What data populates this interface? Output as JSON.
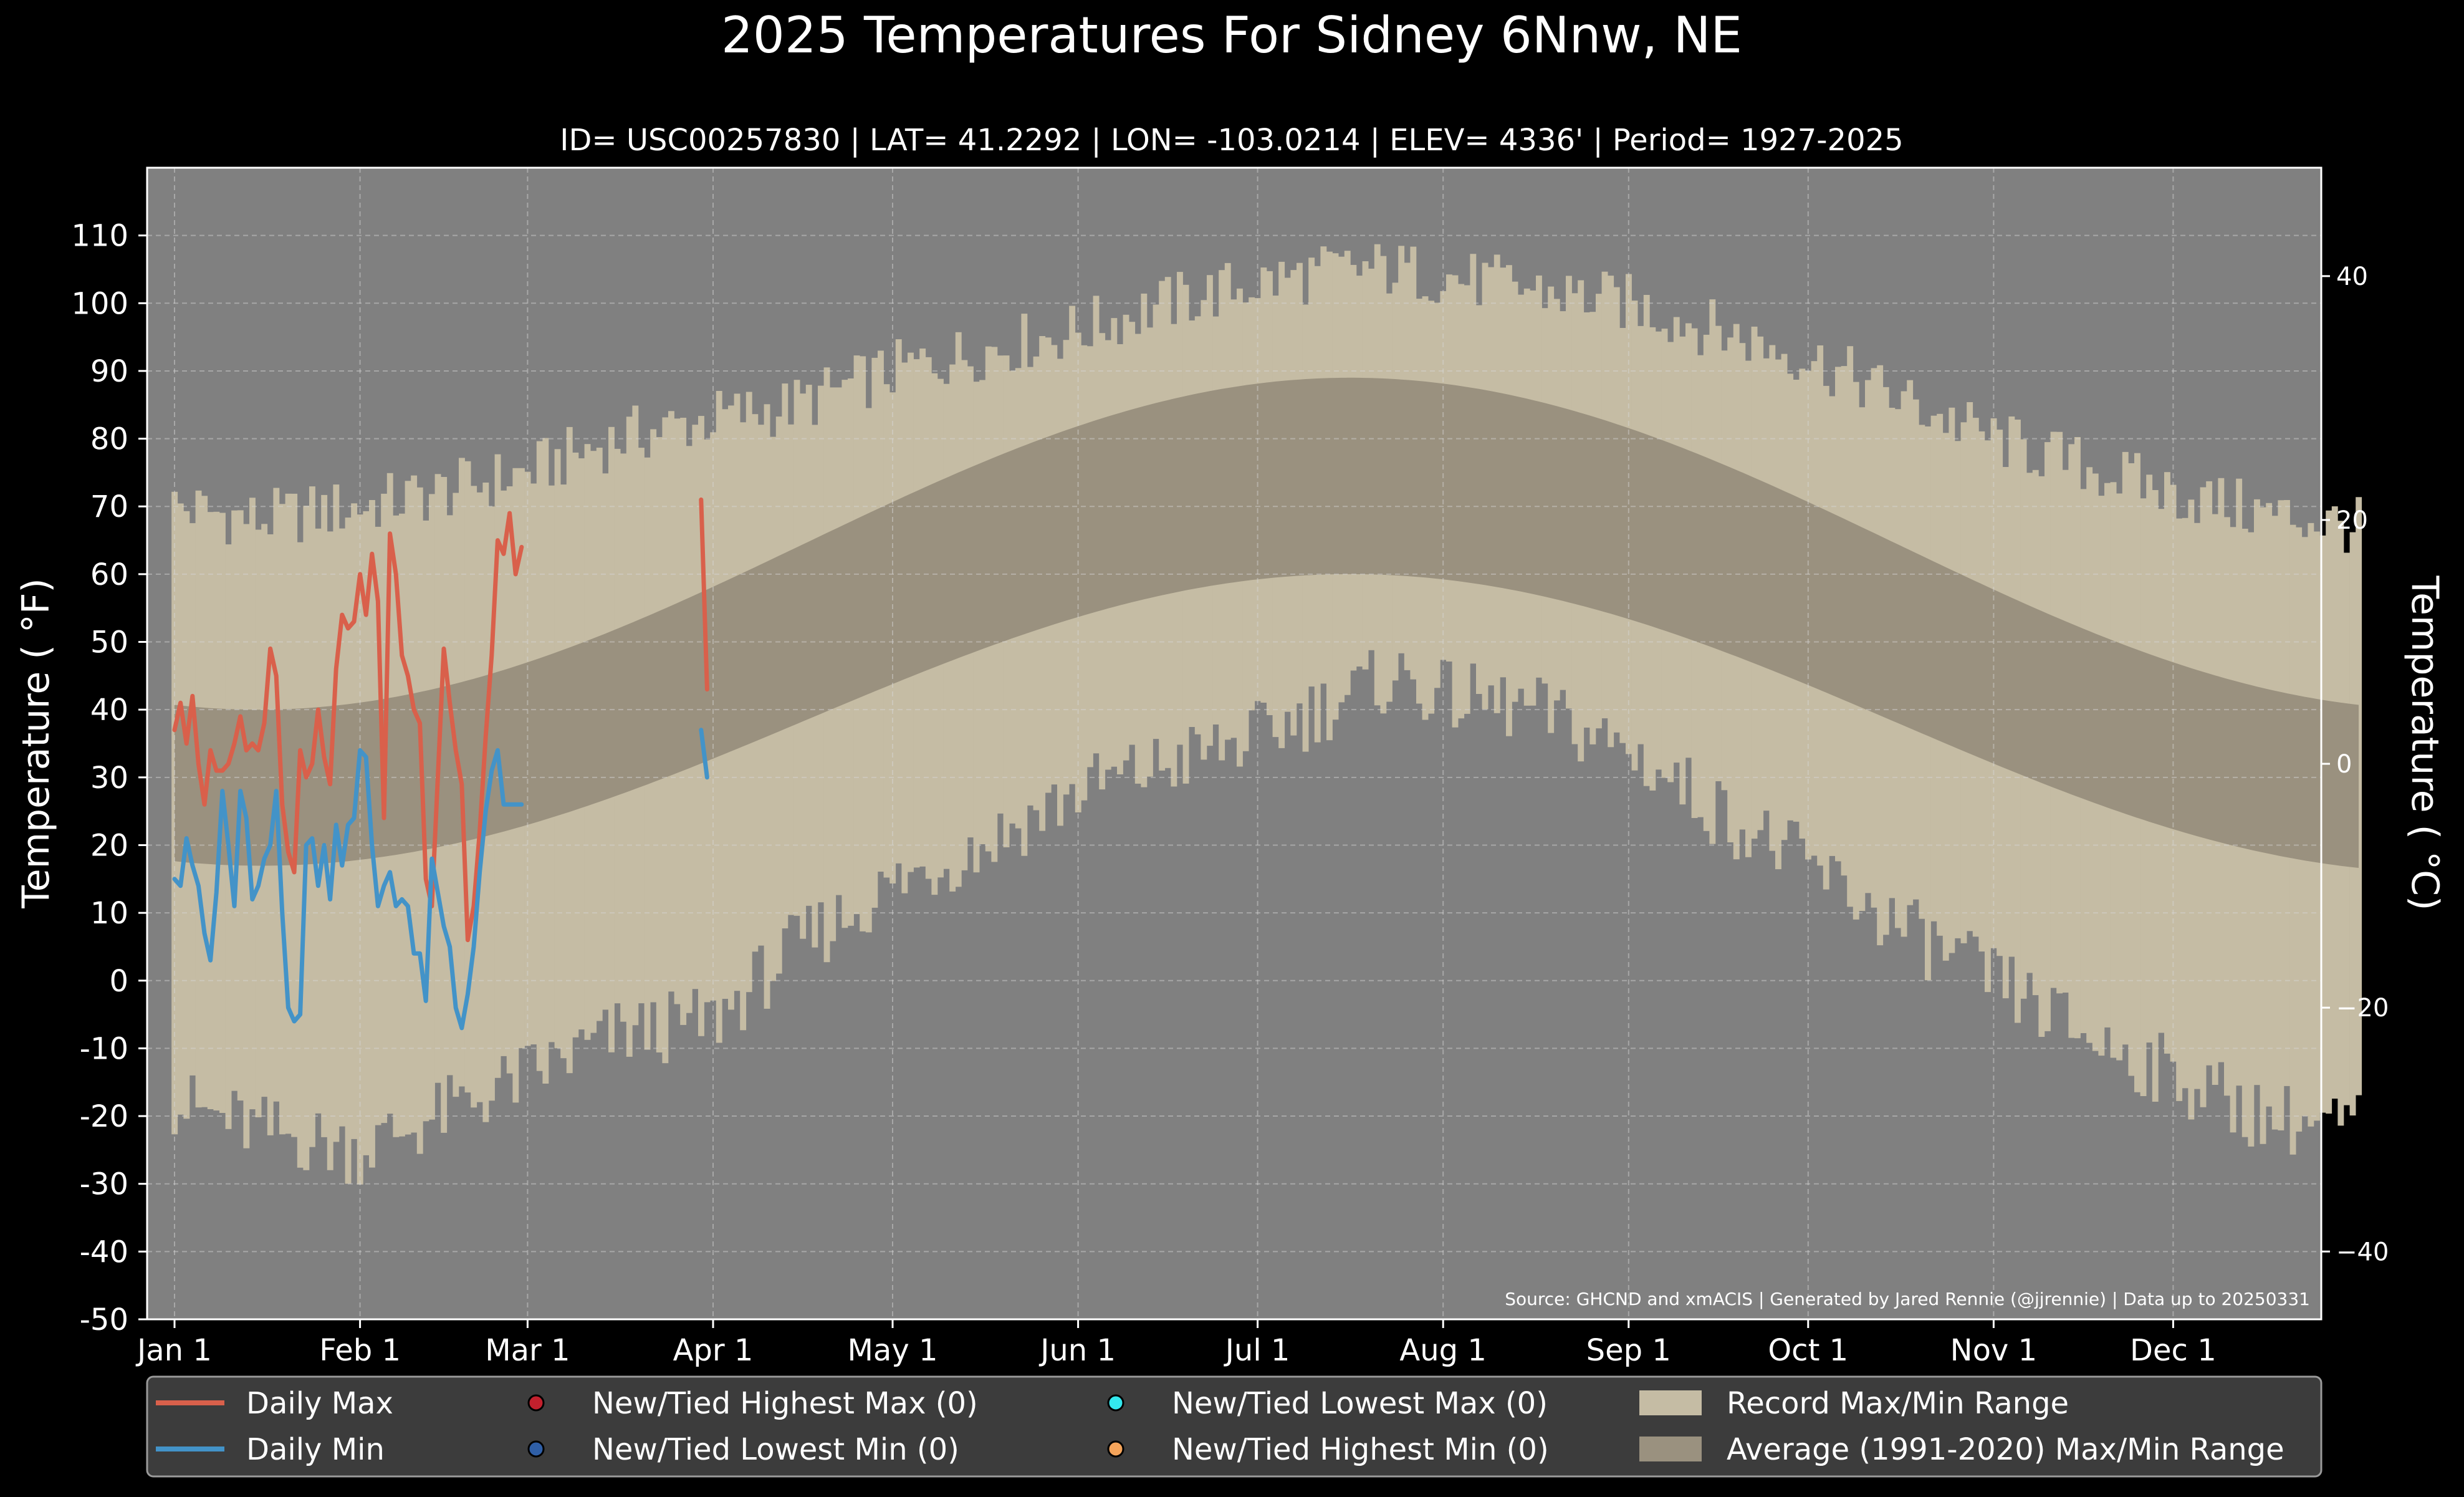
{
  "chart_data": {
    "type": "area",
    "title": "2025 Temperatures For Sidney 6Nnw, NE",
    "subtitle": "ID= USC00257830 | LAT= 41.2292 | LON= -103.0214 | ELEV= 4336' | Period= 1927-2025",
    "ylabel": "Temperature ( °F)",
    "ylabel_right": "Temperature ( °C)",
    "source_note": "Source: GHCND and xmACIS | Generated by Jared Rennie (@jjrennie) | Data up to 20250331",
    "xlim": [
      1,
      366
    ],
    "ylim": [
      -50,
      120
    ],
    "ylim_c": [
      -45.56,
      48.89
    ],
    "grid": true,
    "legend_position": "bottom",
    "x_ticks": [
      {
        "label": "Jan 1",
        "day": 1
      },
      {
        "label": "Feb 1",
        "day": 32
      },
      {
        "label": "Mar 1",
        "day": 60
      },
      {
        "label": "Apr 1",
        "day": 91
      },
      {
        "label": "May 1",
        "day": 121
      },
      {
        "label": "Jun 1",
        "day": 152
      },
      {
        "label": "Jul 1",
        "day": 182
      },
      {
        "label": "Aug 1",
        "day": 213
      },
      {
        "label": "Sep 1",
        "day": 244
      },
      {
        "label": "Oct 1",
        "day": 274
      },
      {
        "label": "Nov 1",
        "day": 305
      },
      {
        "label": "Dec 1",
        "day": 335
      }
    ],
    "y_ticks_f": [
      "-50",
      "-40",
      "-30",
      "-20",
      "-10",
      "0",
      "10",
      "20",
      "30",
      "40",
      "50",
      "60",
      "70",
      "80",
      "90",
      "100",
      "110"
    ],
    "y_ticks_c": [
      {
        "label": "−40",
        "value": -40
      },
      {
        "label": "−20",
        "value": -20
      },
      {
        "label": "0",
        "value": 0
      },
      {
        "label": "20",
        "value": 20
      },
      {
        "label": "40",
        "value": 40
      }
    ],
    "record_max_profile": {
      "days": [
        1,
        15,
        32,
        45,
        60,
        75,
        91,
        105,
        121,
        136,
        152,
        167,
        182,
        197,
        205,
        213,
        228,
        244,
        259,
        274,
        289,
        305,
        320,
        335,
        350,
        366
      ],
      "values": [
        70,
        68,
        70,
        72,
        75,
        80,
        83,
        85,
        90,
        93,
        96,
        100,
        103,
        105,
        105,
        104,
        102,
        100,
        96,
        92,
        86,
        80,
        76,
        72,
        69,
        67
      ]
    },
    "record_min_profile": {
      "days": [
        1,
        15,
        32,
        45,
        60,
        75,
        91,
        105,
        121,
        136,
        152,
        167,
        182,
        197,
        205,
        213,
        228,
        244,
        259,
        274,
        289,
        305,
        320,
        335,
        350,
        366
      ],
      "values": [
        -18,
        -22,
        -25,
        -20,
        -14,
        -8,
        -6,
        5,
        14,
        20,
        28,
        32,
        36,
        42,
        45,
        42,
        40,
        34,
        25,
        17,
        8,
        0,
        -8,
        -14,
        -20,
        -22
      ]
    },
    "series": [
      {
        "name": "Daily Max",
        "color": "#d9604b",
        "segments": [
          {
            "days": [
              1,
              2,
              3,
              4,
              5,
              6,
              7,
              8,
              9,
              10,
              11,
              12,
              13,
              14,
              15,
              16,
              17,
              18,
              19,
              20,
              21,
              22,
              23,
              24,
              25,
              26,
              27,
              28,
              29,
              30,
              31,
              32,
              33,
              34,
              35,
              36,
              37,
              38,
              39,
              40,
              41,
              42,
              43,
              44,
              45,
              46,
              47,
              48,
              49,
              50,
              51,
              52,
              53,
              54,
              55,
              56,
              57,
              58
            ],
            "values": [
              37,
              41,
              35,
              42,
              32,
              26,
              34,
              31,
              31,
              32,
              35,
              39,
              34,
              35,
              34,
              38,
              49,
              45,
              26,
              19,
              16,
              34,
              30,
              32,
              40,
              33,
              29,
              46,
              54,
              52,
              53,
              60,
              54,
              63,
              56,
              24,
              66,
              60,
              48,
              45,
              40,
              38,
              15,
              11,
              30,
              49,
              41,
              34,
              29,
              6,
              11,
              22,
              36,
              48,
              65,
              63,
              69,
              60
            ],
            "extra": [
              [
                59,
                64
              ]
            ]
          },
          {
            "days": [
              89,
              90
            ],
            "values": [
              71,
              43
            ]
          }
        ]
      },
      {
        "name": "Daily Min",
        "color": "#4393c8",
        "segments": [
          {
            "days": [
              1,
              2,
              3,
              4,
              5,
              6,
              7,
              8,
              9,
              10,
              11,
              12,
              13,
              14,
              15,
              16,
              17,
              18,
              19,
              20,
              21,
              22,
              23,
              24,
              25,
              26,
              27,
              28,
              29,
              30,
              31,
              32,
              33,
              34,
              35,
              36,
              37,
              38,
              39,
              40,
              41,
              42,
              43,
              44,
              45,
              46,
              47,
              48,
              49,
              50,
              51,
              52,
              53,
              54,
              55,
              56,
              57,
              58,
              59
            ],
            "values": [
              15,
              14,
              21,
              17,
              14,
              7,
              3,
              13,
              28,
              20,
              11,
              28,
              24,
              12,
              14,
              18,
              20,
              28,
              10,
              -4,
              -6,
              -5,
              20,
              21,
              14,
              20,
              12,
              23,
              17,
              23,
              24,
              34,
              33,
              20,
              11,
              14,
              16,
              11,
              12,
              11,
              4,
              4,
              -3,
              18,
              13,
              8,
              5,
              -4,
              -7,
              -2,
              5,
              16,
              25,
              31,
              34,
              26,
              26,
              26,
              26
            ]
          },
          {
            "days": [
              89,
              90
            ],
            "values": [
              37,
              30
            ]
          }
        ]
      }
    ],
    "legend": [
      {
        "label": "Daily Max",
        "symbol": "line",
        "color": "#d9604b"
      },
      {
        "label": "Daily Min",
        "symbol": "line",
        "color": "#4393c8"
      },
      {
        "label": "New/Tied Highest Max (0)",
        "symbol": "dot",
        "color": "#c3202d"
      },
      {
        "label": "New/Tied Lowest Min (0)",
        "symbol": "dot",
        "color": "#2f5fa7"
      },
      {
        "label": "New/Tied Lowest Max (0)",
        "symbol": "dot",
        "color": "#33e8ee"
      },
      {
        "label": "New/Tied Highest Min (0)",
        "symbol": "dot",
        "color": "#f5a45a"
      },
      {
        "label": "Record Max/Min Range",
        "symbol": "patch",
        "color": "#c5bca4"
      },
      {
        "label": "Average (1991-2020) Max/Min Range",
        "symbol": "patch",
        "color": "#9a917f"
      }
    ],
    "average_range": {
      "peak_max": 89,
      "peak_min": 60,
      "jan_max": 40,
      "jan_min": 17,
      "dec_max": 40,
      "dec_min": 16
    },
    "colors": {
      "background": "#000000",
      "plot_background": "#808080",
      "record_band": "#c5bca4",
      "average_band": "#9a917f",
      "legend_background": "#3c3c3c",
      "text": "#ffffff"
    }
  }
}
